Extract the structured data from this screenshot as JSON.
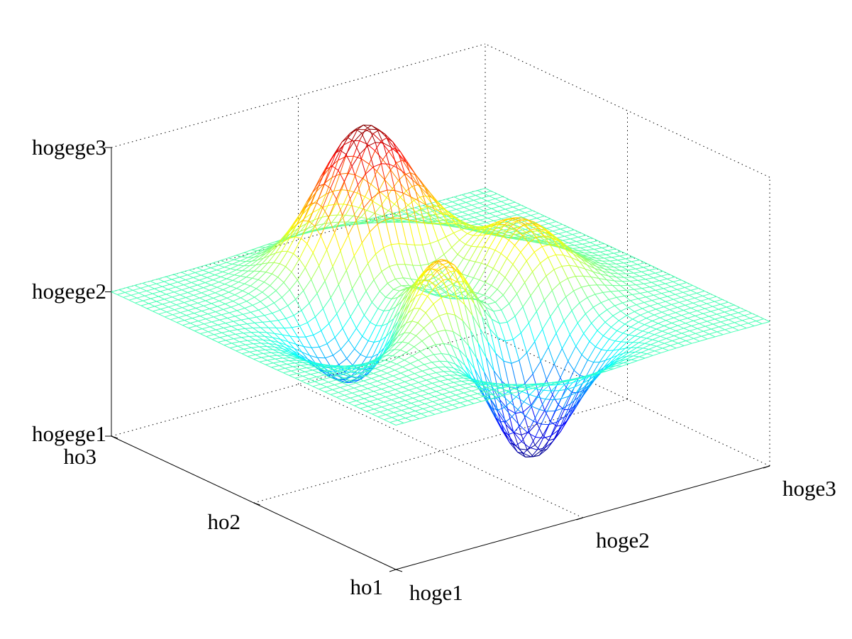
{
  "chart_data": {
    "type": "surface",
    "title": "",
    "xlabel": "",
    "ylabel": "",
    "zlabel": "",
    "x_ticks": [
      "hoge1",
      "hoge2",
      "hoge3"
    ],
    "y_ticks": [
      "ho1",
      "ho2",
      "ho3"
    ],
    "z_ticks": [
      "hogege1",
      "hogege2",
      "hogege3"
    ],
    "x_range": [
      -3,
      3
    ],
    "y_range": [
      -3,
      3
    ],
    "z_range": [
      -8,
      8
    ],
    "grid": true,
    "colormap": "jet",
    "function": "3*(1-x)^2*exp(-x^2-(y+1)^2) - 10*(x/5-x^3-y^5)*exp(-x^2-y^2) - 1/3*exp(-(x+1)^2-y^2)",
    "mesh_resolution": 49
  }
}
